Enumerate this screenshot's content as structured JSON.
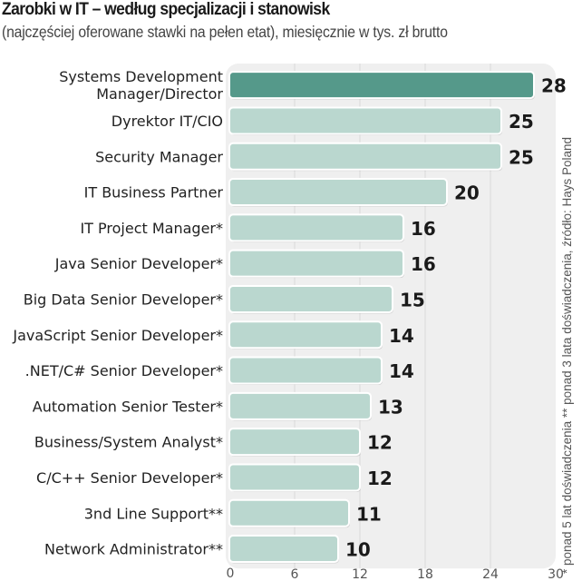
{
  "chart_data": {
    "type": "bar",
    "orientation": "horizontal",
    "title": "Zarobki w IT – według specjalizacji i stanowisk",
    "subtitle": "(najczęściej oferowane stawki na pełen etat), miesięcznie w tys. zł brutto",
    "categories": [
      [
        "Systems Development",
        "Manager/Director"
      ],
      [
        "Dyrektor IT/CIO"
      ],
      [
        "Security Manager"
      ],
      [
        "IT Business Partner"
      ],
      [
        "IT Project Manager*"
      ],
      [
        "Java Senior Developer*"
      ],
      [
        "Big Data Senior Developer*"
      ],
      [
        "JavaScript Senior Developer*"
      ],
      [
        ".NET/C# Senior Developer*"
      ],
      [
        "Automation Senior Tester*"
      ],
      [
        "Business/System Analyst*"
      ],
      [
        "C/C++ Senior Developer*"
      ],
      [
        "3nd Line Support**"
      ],
      [
        "Network Administrator**"
      ]
    ],
    "values": [
      28,
      25,
      25,
      20,
      16,
      16,
      15,
      14,
      14,
      13,
      12,
      12,
      11,
      10
    ],
    "highlight_index": 0,
    "xlim": [
      0,
      30
    ],
    "xticks": [
      0,
      6,
      12,
      18,
      24,
      30
    ],
    "xtick_labels": [
      "0",
      "6",
      "12",
      "18",
      "24",
      "30"
    ],
    "grid": true,
    "xlabel": "",
    "ylabel": "",
    "colors": {
      "highlight": "#55998a",
      "bar": "#bad7cf",
      "panel": "#efefef",
      "grid": "#d8d8d8"
    },
    "footnote": "* ponad 5 lat doświadczenia ** ponad 3 lata doświadczenia, źródło: Hays Poland"
  }
}
